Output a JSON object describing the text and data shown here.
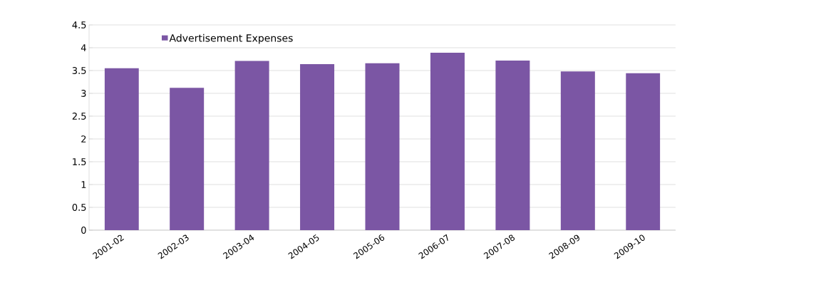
{
  "chart_data": {
    "type": "bar",
    "categories": [
      "2001-02",
      "2002-03",
      "2003-04",
      "2004-05",
      "2005-06",
      "2006-07",
      "2007-08",
      "2008-09",
      "2009-10"
    ],
    "series": [
      {
        "name": "Advertisement Expenses",
        "color": "#7b56a4",
        "values": [
          3.55,
          3.12,
          3.71,
          3.64,
          3.66,
          3.89,
          3.72,
          3.48,
          3.44
        ]
      }
    ],
    "ylim": [
      0,
      4.5
    ],
    "yticks": [
      0,
      0.5,
      1,
      1.5,
      2,
      2.5,
      3,
      3.5,
      4,
      4.5
    ],
    "grid": "y",
    "legend": "top left"
  }
}
